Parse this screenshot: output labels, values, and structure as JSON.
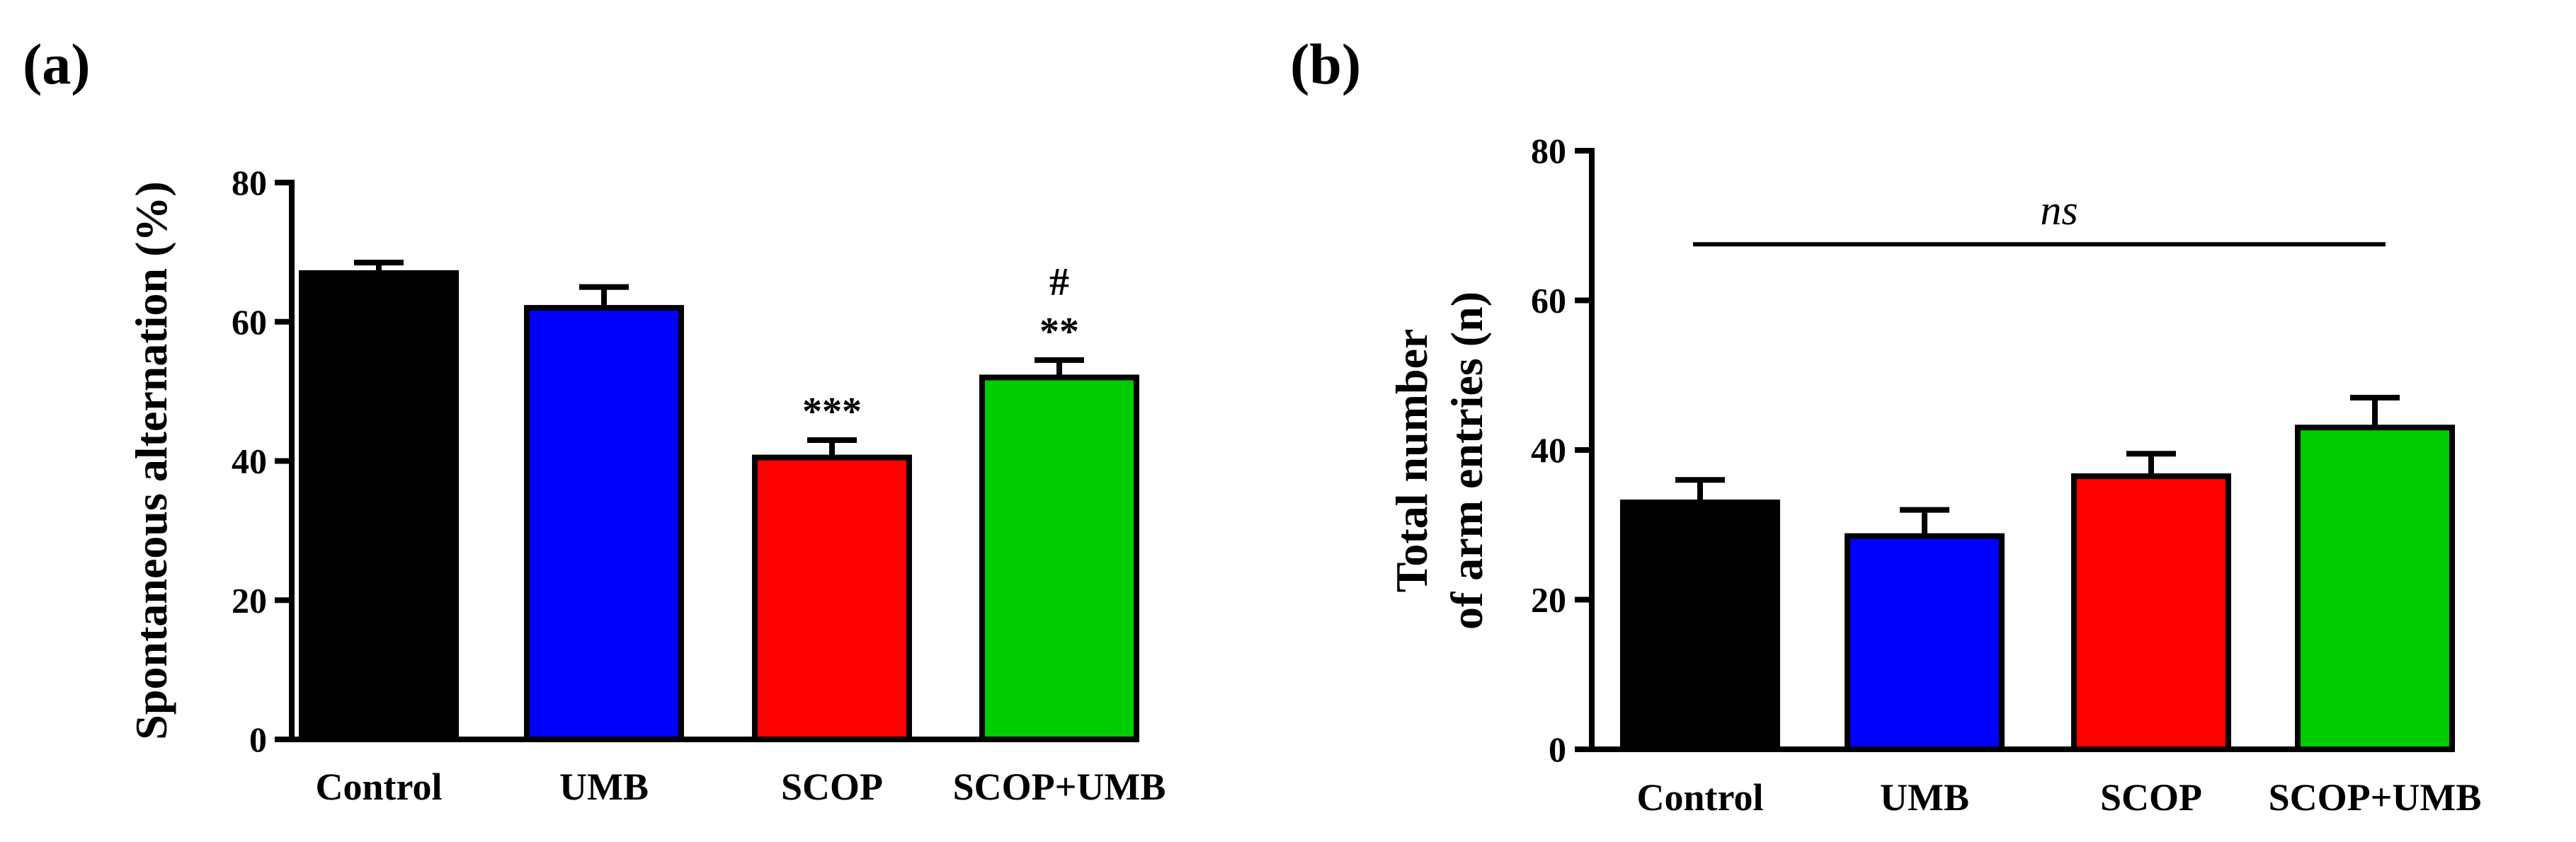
{
  "chart_data": [
    {
      "panel": "(a)",
      "type": "bar",
      "title": "",
      "xlabel": "",
      "ylabel": "Spontaneous alternation (%)",
      "ylim": [
        0,
        80
      ],
      "yticks": [
        0,
        20,
        40,
        60,
        80
      ],
      "categories": [
        "Control",
        "UMB",
        "SCOP",
        "SCOP+UMB"
      ],
      "values": [
        67,
        62,
        40.5,
        52
      ],
      "errors": [
        1.5,
        3,
        2.5,
        2.5
      ],
      "colors": [
        "#000000",
        "#0000ff",
        "#ff0000",
        "#00cc00"
      ],
      "annotations": [
        {
          "category_index": 2,
          "lines": [
            "***"
          ]
        },
        {
          "category_index": 3,
          "lines": [
            "#",
            "**"
          ]
        }
      ]
    },
    {
      "panel": "(b)",
      "type": "bar",
      "title": "",
      "xlabel": "",
      "ylabel_lines": [
        "Total number",
        "of arm entries (n)"
      ],
      "ylim": [
        0,
        80
      ],
      "yticks": [
        0,
        20,
        40,
        60,
        80
      ],
      "categories": [
        "Control",
        "UMB",
        "SCOP",
        "SCOP+UMB"
      ],
      "values": [
        33,
        28.5,
        36.5,
        43
      ],
      "errors": [
        3,
        3.5,
        3,
        4
      ],
      "colors": [
        "#000000",
        "#0000ff",
        "#ff0000",
        "#00cc00"
      ],
      "significance_line": {
        "label": "ns",
        "y": 67.5
      }
    }
  ]
}
